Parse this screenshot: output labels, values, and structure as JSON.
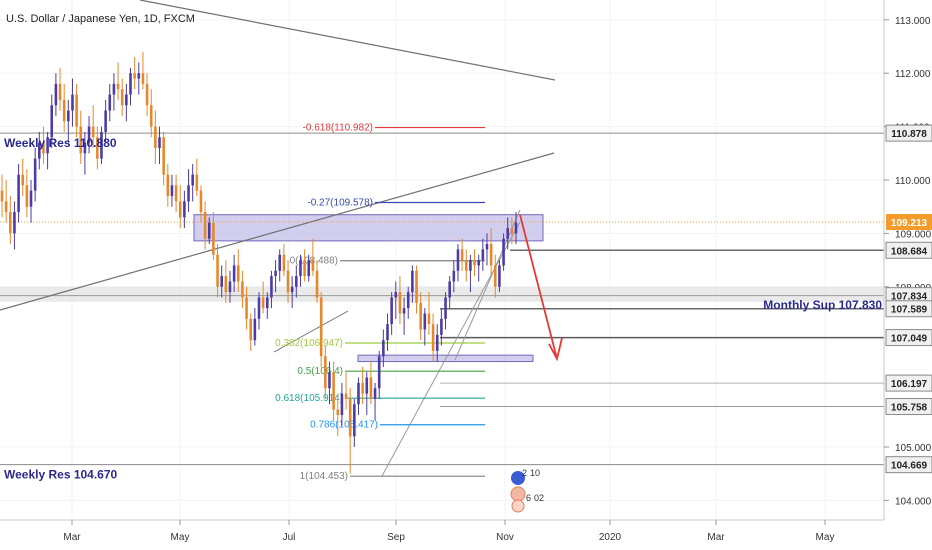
{
  "chart_data": {
    "type": "candlestick",
    "title": "U.S. Dollar / Japanese Yen, 1D, FXCM",
    "y_ticks": [
      "113.000",
      "112.000",
      "111.000",
      "110.000",
      "109.000",
      "108.000",
      "105.000",
      "104.000"
    ],
    "y_tick_values": [
      113,
      112,
      111,
      110,
      109,
      108,
      105,
      104
    ],
    "x_ticks": [
      "Mar",
      "May",
      "Jul",
      "Sep",
      "Nov",
      "2020",
      "Mar",
      "May"
    ],
    "ylim": [
      103.72,
      113.48
    ],
    "last_price": "109.213",
    "price_labels": [
      {
        "text": "110.878",
        "value": 110.878,
        "style": "gray"
      },
      {
        "text": "109.213",
        "value": 109.213,
        "style": "orange"
      },
      {
        "text": "108.684",
        "value": 108.684,
        "style": "gray"
      },
      {
        "text": "107.834",
        "value": 107.834,
        "style": "gray"
      },
      {
        "text": "107.589",
        "value": 107.589,
        "style": "gray"
      },
      {
        "text": "107.049",
        "value": 107.049,
        "style": "gray"
      },
      {
        "text": "106.197",
        "value": 106.197,
        "style": "gray"
      },
      {
        "text": "105.758",
        "value": 105.758,
        "style": "gray"
      },
      {
        "text": "104.669",
        "value": 104.669,
        "style": "gray"
      }
    ],
    "level_labels": [
      {
        "text": "Weekly Res 110.880",
        "value": 110.88
      },
      {
        "text": "Monthly Sup 107.830",
        "value": 107.83
      },
      {
        "text": "Weekly Res 104.670",
        "value": 104.67
      }
    ],
    "fib_levels": [
      {
        "text": "-0.618(110.982)",
        "value": 110.982,
        "color": "#e53935"
      },
      {
        "text": "-0.27(109.578)",
        "value": 109.578,
        "color": "#3949ab"
      },
      {
        "text": "0(108.488)",
        "value": 108.488,
        "color": "#808080"
      },
      {
        "text": "0.382(106.947)",
        "value": 106.947,
        "color": "#9ccc3c"
      },
      {
        "text": "0.5(106.4)",
        "value": 106.42,
        "color": "#43a047"
      },
      {
        "text": "0.618(105.914)",
        "value": 105.914,
        "color": "#26a69a"
      },
      {
        "text": "0.786(105.417)",
        "value": 105.417,
        "color": "#2196f3"
      },
      {
        "text": "1(104.453)",
        "value": 104.453,
        "color": "#808080"
      }
    ],
    "event_badges": [
      "2",
      "10",
      "6",
      "02"
    ],
    "colors": {
      "up": "#4b3aa8",
      "down": "#e8872a",
      "zone": "#c9c6ec",
      "arrow": "#e53935",
      "orange_line": "#f39c2b"
    },
    "candles": [
      [
        109.8,
        110.1,
        109.3,
        109.6
      ],
      [
        109.6,
        110.0,
        109.2,
        109.4
      ],
      [
        109.4,
        109.7,
        108.8,
        109.0
      ],
      [
        109.0,
        109.6,
        108.7,
        109.4
      ],
      [
        109.4,
        110.3,
        109.2,
        110.1
      ],
      [
        110.1,
        110.4,
        109.7,
        109.9
      ],
      [
        109.9,
        110.2,
        109.3,
        109.5
      ],
      [
        109.5,
        110.0,
        109.2,
        109.8
      ],
      [
        109.8,
        110.6,
        109.6,
        110.4
      ],
      [
        110.4,
        110.9,
        110.2,
        110.7
      ],
      [
        110.7,
        111.0,
        110.3,
        110.5
      ],
      [
        110.5,
        110.9,
        110.2,
        110.8
      ],
      [
        110.8,
        111.6,
        110.6,
        111.4
      ],
      [
        111.4,
        112.0,
        111.2,
        111.8
      ],
      [
        111.8,
        112.1,
        111.3,
        111.5
      ],
      [
        111.5,
        111.8,
        110.9,
        111.1
      ],
      [
        111.1,
        111.5,
        110.7,
        111.3
      ],
      [
        111.3,
        111.9,
        111.0,
        111.6
      ],
      [
        111.6,
        111.8,
        110.8,
        111.0
      ],
      [
        111.0,
        111.3,
        110.3,
        110.5
      ],
      [
        110.5,
        110.9,
        110.1,
        110.7
      ],
      [
        110.7,
        111.2,
        110.5,
        111.0
      ],
      [
        111.0,
        111.4,
        110.6,
        110.8
      ],
      [
        110.8,
        111.0,
        110.2,
        110.4
      ],
      [
        110.4,
        111.0,
        110.3,
        110.9
      ],
      [
        110.9,
        111.5,
        110.7,
        111.3
      ],
      [
        111.3,
        111.8,
        111.1,
        111.6
      ],
      [
        111.6,
        112.0,
        111.3,
        111.8
      ],
      [
        111.8,
        112.2,
        111.5,
        111.7
      ],
      [
        111.7,
        111.9,
        111.2,
        111.4
      ],
      [
        111.4,
        111.8,
        111.1,
        111.6
      ],
      [
        111.6,
        112.1,
        111.4,
        112.0
      ],
      [
        112.0,
        112.3,
        111.7,
        111.9
      ],
      [
        111.9,
        112.2,
        111.6,
        112.0
      ],
      [
        112.0,
        112.4,
        111.7,
        111.8
      ],
      [
        111.8,
        112.0,
        111.2,
        111.4
      ],
      [
        111.4,
        111.7,
        110.8,
        111.0
      ],
      [
        111.0,
        111.3,
        110.3,
        110.6
      ],
      [
        110.6,
        111.0,
        110.3,
        110.8
      ],
      [
        110.8,
        110.9,
        109.9,
        110.1
      ],
      [
        110.1,
        110.3,
        109.5,
        109.7
      ],
      [
        109.7,
        110.1,
        109.5,
        109.9
      ],
      [
        109.9,
        110.1,
        109.4,
        109.6
      ],
      [
        109.6,
        109.9,
        109.1,
        109.3
      ],
      [
        109.3,
        109.8,
        109.1,
        109.6
      ],
      [
        109.6,
        110.2,
        109.4,
        109.9
      ],
      [
        109.9,
        110.3,
        109.6,
        110.1
      ],
      [
        110.1,
        110.4,
        109.7,
        109.8
      ],
      [
        109.8,
        109.9,
        109.2,
        109.4
      ],
      [
        109.4,
        109.6,
        108.7,
        108.9
      ],
      [
        108.9,
        109.3,
        108.8,
        109.2
      ],
      [
        109.2,
        109.4,
        108.5,
        108.6
      ],
      [
        108.6,
        108.8,
        107.8,
        108.0
      ],
      [
        108.0,
        108.4,
        107.8,
        108.2
      ],
      [
        108.2,
        108.5,
        107.7,
        107.9
      ],
      [
        107.9,
        108.3,
        107.7,
        108.1
      ],
      [
        108.1,
        108.6,
        107.9,
        108.4
      ],
      [
        108.4,
        108.7,
        107.9,
        108.1
      ],
      [
        108.1,
        108.3,
        107.6,
        107.8
      ],
      [
        107.8,
        108.0,
        107.2,
        107.4
      ],
      [
        107.4,
        107.5,
        106.8,
        107.0
      ],
      [
        107.0,
        107.6,
        106.9,
        107.4
      ],
      [
        107.4,
        107.9,
        107.2,
        107.8
      ],
      [
        107.8,
        108.1,
        107.5,
        107.6
      ],
      [
        107.6,
        107.9,
        107.4,
        107.8
      ],
      [
        107.8,
        108.3,
        107.6,
        108.2
      ],
      [
        108.2,
        108.5,
        107.9,
        108.3
      ],
      [
        108.3,
        108.7,
        108.1,
        108.6
      ],
      [
        108.6,
        108.8,
        108.2,
        108.3
      ],
      [
        108.3,
        108.5,
        107.7,
        107.9
      ],
      [
        107.9,
        108.2,
        107.6,
        108.0
      ],
      [
        108.0,
        108.4,
        107.8,
        108.2
      ],
      [
        108.2,
        108.6,
        108.0,
        108.5
      ],
      [
        108.5,
        108.7,
        108.1,
        108.2
      ],
      [
        108.2,
        108.6,
        108.1,
        108.5
      ],
      [
        108.5,
        108.9,
        108.2,
        108.3
      ],
      [
        108.3,
        108.5,
        107.7,
        107.8
      ],
      [
        107.8,
        107.9,
        106.5,
        106.7
      ],
      [
        106.7,
        106.9,
        105.9,
        106.1
      ],
      [
        106.1,
        106.6,
        105.8,
        106.4
      ],
      [
        106.4,
        106.6,
        105.5,
        105.7
      ],
      [
        105.7,
        106.0,
        105.2,
        105.6
      ],
      [
        105.6,
        106.2,
        105.4,
        106.0
      ],
      [
        106.0,
        106.4,
        105.7,
        105.9
      ],
      [
        105.9,
        106.1,
        104.5,
        105.2
      ],
      [
        105.2,
        105.9,
        105.0,
        105.8
      ],
      [
        105.8,
        106.3,
        105.6,
        106.2
      ],
      [
        106.2,
        106.5,
        105.8,
        106.0
      ],
      [
        106.0,
        106.4,
        105.6,
        106.3
      ],
      [
        106.3,
        106.6,
        105.8,
        105.9
      ],
      [
        105.9,
        106.2,
        105.5,
        106.1
      ],
      [
        106.1,
        106.8,
        105.9,
        106.7
      ],
      [
        106.7,
        107.2,
        106.5,
        107.0
      ],
      [
        107.0,
        107.5,
        106.8,
        107.3
      ],
      [
        107.3,
        107.9,
        107.1,
        107.8
      ],
      [
        107.8,
        108.1,
        107.4,
        107.9
      ],
      [
        107.9,
        108.2,
        107.3,
        107.5
      ],
      [
        107.5,
        107.8,
        107.1,
        107.6
      ],
      [
        107.6,
        108.0,
        107.4,
        107.9
      ],
      [
        107.9,
        108.4,
        107.7,
        108.3
      ],
      [
        108.3,
        108.4,
        107.5,
        107.7
      ],
      [
        107.7,
        107.9,
        107.0,
        107.2
      ],
      [
        107.2,
        107.6,
        106.9,
        107.5
      ],
      [
        107.5,
        107.9,
        107.1,
        107.3
      ],
      [
        107.3,
        107.5,
        106.6,
        106.8
      ],
      [
        106.8,
        107.3,
        106.6,
        107.1
      ],
      [
        107.1,
        107.6,
        106.9,
        107.4
      ],
      [
        107.4,
        107.9,
        107.2,
        107.8
      ],
      [
        107.8,
        108.2,
        107.6,
        108.1
      ],
      [
        108.1,
        108.5,
        107.9,
        108.3
      ],
      [
        108.3,
        108.8,
        108.1,
        108.7
      ],
      [
        108.7,
        108.9,
        108.3,
        108.5
      ],
      [
        108.5,
        108.7,
        108.1,
        108.3
      ],
      [
        108.3,
        108.6,
        107.9,
        108.5
      ],
      [
        108.5,
        108.7,
        108.2,
        108.4
      ],
      [
        108.4,
        108.6,
        108.1,
        108.5
      ],
      [
        108.5,
        108.9,
        108.3,
        108.7
      ],
      [
        108.7,
        109.0,
        108.4,
        108.8
      ],
      [
        108.8,
        109.1,
        108.2,
        108.4
      ],
      [
        108.4,
        108.6,
        107.8,
        108.0
      ],
      [
        108.0,
        108.5,
        107.9,
        108.4
      ],
      [
        108.4,
        109.0,
        108.3,
        108.9
      ],
      [
        108.9,
        109.3,
        108.7,
        109.1
      ],
      [
        109.1,
        109.3,
        108.8,
        109.0
      ],
      [
        109.0,
        109.4,
        108.8,
        109.2
      ]
    ]
  }
}
